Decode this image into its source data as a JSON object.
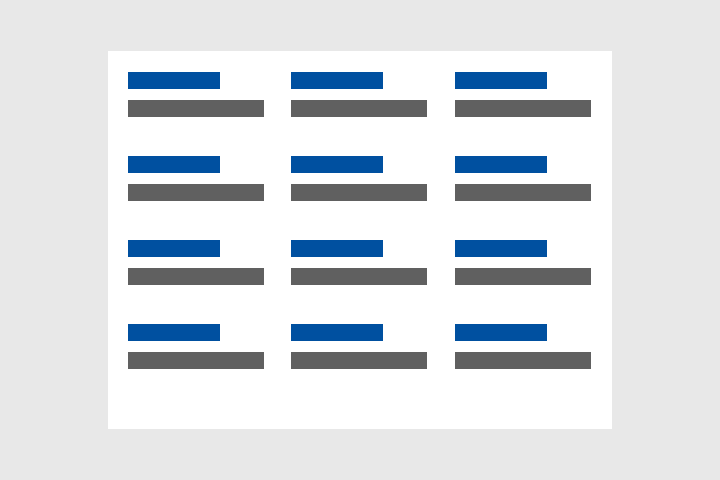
{
  "colors": {
    "background": "#e8e8e8",
    "card": "#ffffff",
    "title_bar": "#0050a0",
    "text_bar": "#606060"
  },
  "grid": {
    "columns": 3,
    "rows": 4
  },
  "items": [
    {
      "id": 1
    },
    {
      "id": 2
    },
    {
      "id": 3
    },
    {
      "id": 4
    },
    {
      "id": 5
    },
    {
      "id": 6
    },
    {
      "id": 7
    },
    {
      "id": 8
    },
    {
      "id": 9
    },
    {
      "id": 10
    },
    {
      "id": 11
    },
    {
      "id": 12
    }
  ]
}
